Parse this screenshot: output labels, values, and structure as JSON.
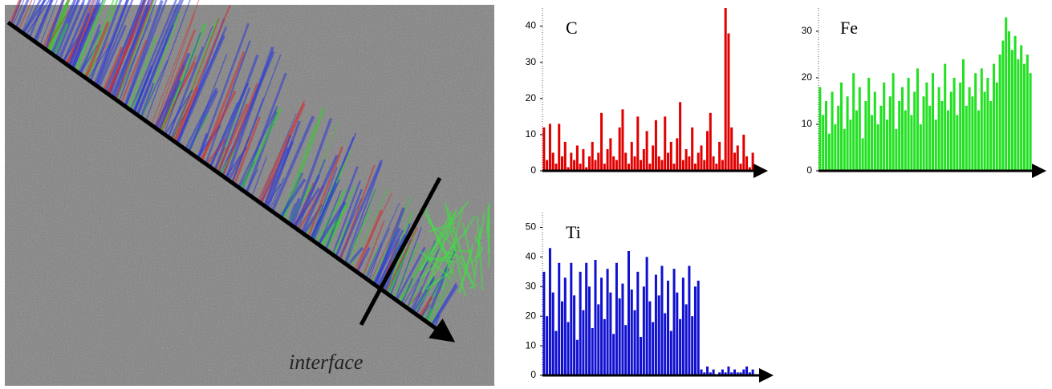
{
  "image": {
    "label": "interface"
  },
  "chart_data": [
    {
      "type": "bar",
      "title": "C",
      "color": "#e00000",
      "ylim": [
        0,
        45
      ],
      "yticks": [
        0,
        10,
        20,
        30,
        40
      ],
      "values": [
        12,
        3,
        13,
        5,
        2,
        13,
        4,
        8,
        1,
        5,
        3,
        7,
        2,
        6,
        1,
        4,
        8,
        3,
        5,
        16,
        2,
        6,
        9,
        4,
        3,
        12,
        17,
        5,
        2,
        8,
        4,
        15,
        3,
        6,
        11,
        2,
        7,
        14,
        4,
        3,
        15,
        5,
        8,
        2,
        9,
        19,
        3,
        6,
        4,
        12,
        2,
        5,
        7,
        3,
        11,
        16,
        4,
        2,
        8,
        3,
        45,
        38,
        12,
        5,
        7,
        2,
        10,
        4,
        1,
        5
      ]
    },
    {
      "type": "bar",
      "title": "Fe",
      "color": "#22e022",
      "ylim": [
        0,
        35
      ],
      "yticks": [
        0,
        10,
        20,
        30
      ],
      "values": [
        18,
        12,
        15,
        8,
        17,
        10,
        14,
        19,
        9,
        16,
        11,
        21,
        13,
        18,
        7,
        15,
        20,
        12,
        17,
        10,
        14,
        19,
        11,
        16,
        21,
        9,
        15,
        18,
        13,
        20,
        12,
        17,
        22,
        10,
        16,
        19,
        14,
        21,
        11,
        18,
        15,
        23,
        13,
        17,
        20,
        12,
        19,
        24,
        14,
        18,
        16,
        21,
        13,
        22,
        17,
        20,
        15,
        23,
        19,
        25,
        28,
        33,
        30,
        26,
        29,
        24,
        27,
        23,
        25,
        21
      ]
    },
    {
      "type": "bar",
      "title": "Ti",
      "color": "#1010d0",
      "ylim": [
        0,
        55
      ],
      "yticks": [
        0,
        10,
        20,
        30,
        40,
        50
      ],
      "values": [
        35,
        20,
        43,
        28,
        15,
        38,
        25,
        33,
        18,
        38,
        27,
        12,
        35,
        22,
        38,
        30,
        16,
        39,
        24,
        33,
        19,
        36,
        28,
        14,
        38,
        26,
        31,
        17,
        42,
        29,
        22,
        35,
        13,
        30,
        40,
        25,
        18,
        34,
        27,
        37,
        21,
        32,
        15,
        36,
        28,
        19,
        33,
        24,
        37,
        20,
        30,
        32,
        2,
        1,
        3,
        1,
        2,
        0,
        1,
        2,
        1,
        3,
        1,
        2,
        1,
        1,
        2,
        3,
        1,
        2
      ]
    }
  ]
}
